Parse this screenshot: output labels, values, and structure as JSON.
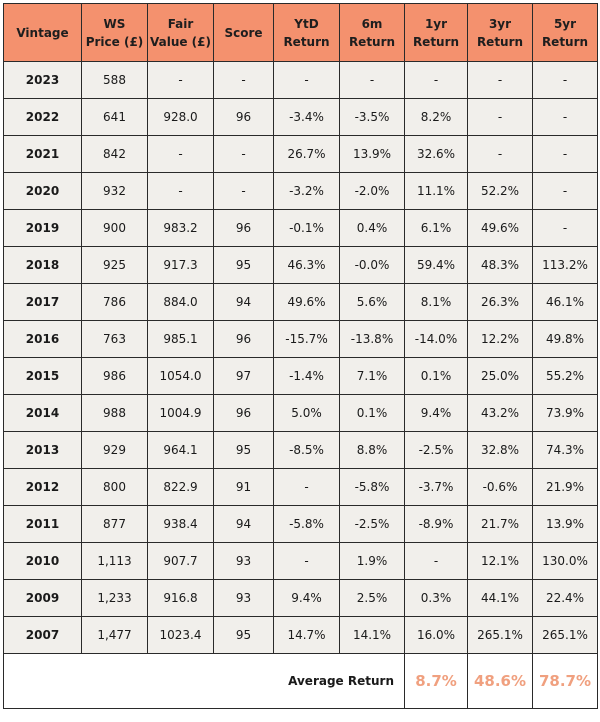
{
  "headers": [
    [
      "Vintage"
    ],
    [
      "WS",
      "Price (£)"
    ],
    [
      "Fair",
      "Value (£)"
    ],
    [
      "Score"
    ],
    [
      "YtD",
      "Return"
    ],
    [
      "6m",
      "Return"
    ],
    [
      "1yr",
      "Return"
    ],
    [
      "3yr",
      "Return"
    ],
    [
      "5yr",
      "Return"
    ]
  ],
  "rows": [
    [
      "2023",
      "588",
      "-",
      "-",
      "-",
      "-",
      "-",
      "-",
      "-"
    ],
    [
      "2022",
      "641",
      "928.0",
      "96",
      "-3.4%",
      "-3.5%",
      "8.2%",
      "-",
      "-"
    ],
    [
      "2021",
      "842",
      "-",
      "-",
      "26.7%",
      "13.9%",
      "32.6%",
      "-",
      "-"
    ],
    [
      "2020",
      "932",
      "-",
      "-",
      "-3.2%",
      "-2.0%",
      "11.1%",
      "52.2%",
      "-"
    ],
    [
      "2019",
      "900",
      "983.2",
      "96",
      "-0.1%",
      "0.4%",
      "6.1%",
      "49.6%",
      "-"
    ],
    [
      "2018",
      "925",
      "917.3",
      "95",
      "46.3%",
      "-0.0%",
      "59.4%",
      "48.3%",
      "113.2%"
    ],
    [
      "2017",
      "786",
      "884.0",
      "94",
      "49.6%",
      "5.6%",
      "8.1%",
      "26.3%",
      "46.1%"
    ],
    [
      "2016",
      "763",
      "985.1",
      "96",
      "-15.7%",
      "-13.8%",
      "-14.0%",
      "12.2%",
      "49.8%"
    ],
    [
      "2015",
      "986",
      "1054.0",
      "97",
      "-1.4%",
      "7.1%",
      "0.1%",
      "25.0%",
      "55.2%"
    ],
    [
      "2014",
      "988",
      "1004.9",
      "96",
      "5.0%",
      "0.1%",
      "9.4%",
      "43.2%",
      "73.9%"
    ],
    [
      "2013",
      "929",
      "964.1",
      "95",
      "-8.5%",
      "8.8%",
      "-2.5%",
      "32.8%",
      "74.3%"
    ],
    [
      "2012",
      "800",
      "822.9",
      "91",
      "-",
      "-5.8%",
      "-3.7%",
      "-0.6%",
      "21.9%"
    ],
    [
      "2011",
      "877",
      "938.4",
      "94",
      "-5.8%",
      "-2.5%",
      "-8.9%",
      "21.7%",
      "13.9%"
    ],
    [
      "2010",
      "1,113",
      "907.7",
      "93",
      "-",
      "1.9%",
      "-",
      "12.1%",
      "130.0%"
    ],
    [
      "2009",
      "1,233",
      "916.8",
      "93",
      "9.4%",
      "2.5%",
      "0.3%",
      "44.1%",
      "22.4%"
    ],
    [
      "2007",
      "1,477",
      "1023.4",
      "95",
      "14.7%",
      "14.1%",
      "16.0%",
      "265.1%",
      "265.1%"
    ]
  ],
  "average": {
    "label": "Average Return",
    "one_yr": "8.7%",
    "three_yr": "48.6%",
    "five_yr": "78.7%"
  },
  "colors": {
    "header_bg": "#f4916e",
    "cell_bg": "#f1efeb",
    "highlight_text": "#f0a07f",
    "border": "#2a2a2a"
  }
}
